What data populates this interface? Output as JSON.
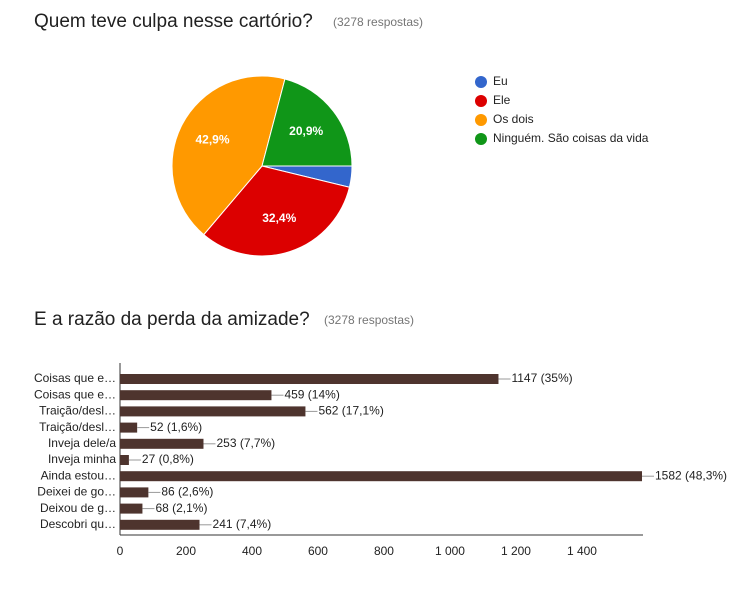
{
  "chart_data": [
    {
      "type": "pie",
      "title": "Quem teve culpa nesse cartório?",
      "subtitle": "(3278 respostas)",
      "categories": [
        "Eu",
        "Ele",
        "Os dois",
        "Ninguém. São coisas da vida"
      ],
      "values": [
        3.8,
        32.4,
        42.9,
        20.9
      ],
      "value_labels": [
        null,
        "32,4%",
        "42,9%",
        "20,9%"
      ],
      "colors": [
        "#3366cc",
        "#dc0000",
        "#ff9900",
        "#109618"
      ],
      "legend": "right"
    },
    {
      "type": "hbar",
      "title": "E a razão da perda da amizade?",
      "subtitle": "(3278 respostas)",
      "categories": [
        "Coisas que e…",
        "Coisas que e…",
        "Traição/desl…",
        "Traição/desl…",
        "Inveja dele/a",
        "Inveja minha",
        "Ainda estou…",
        "Deixei de go…",
        "Deixou de g…",
        "Descobri qu…"
      ],
      "values": [
        1147,
        459,
        562,
        52,
        253,
        27,
        1582,
        86,
        68,
        241
      ],
      "value_labels": [
        "1147 (35%)",
        "459 (14%)",
        "562 (17,1%)",
        "52 (1,6%)",
        "253 (7,7%)",
        "27 (0,8%)",
        "1582 (48,3%)",
        "86 (2,6%)",
        "68 (2,1%)",
        "241 (7,4%)"
      ],
      "color": "#4e342e",
      "xlim": [
        0,
        1585
      ],
      "xticks": [
        0,
        200,
        400,
        600,
        800,
        {
          "value": 1000,
          "label": "1 000"
        },
        {
          "value": 1200,
          "label": "1 200"
        },
        {
          "value": 1400,
          "label": "1 400"
        }
      ]
    }
  ]
}
